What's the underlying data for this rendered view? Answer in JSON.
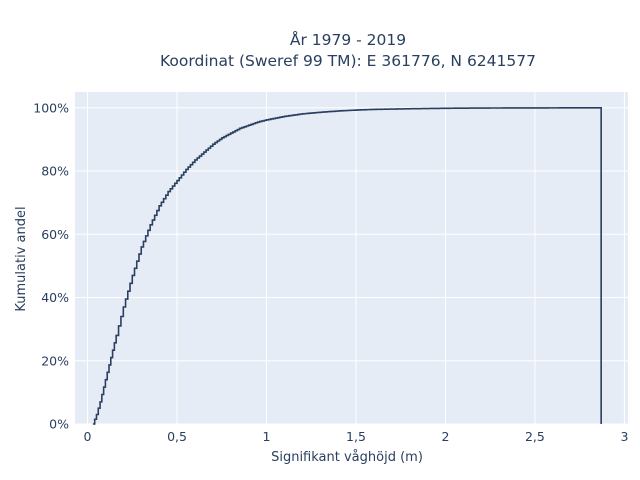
{
  "chart_data": {
    "type": "line",
    "line_shape": "step",
    "title": [
      "År 1979 - 2019",
      "Koordinat (Sweref 99 TM): E 361776, N 6241577"
    ],
    "xlabel": "Signifikant våghöjd (m)",
    "ylabel": "Kumulativ andel",
    "xlim": [
      -0.07,
      3.02
    ],
    "ylim": [
      0,
      1.05
    ],
    "x_ticks": [
      0,
      0.5,
      1,
      1.5,
      2,
      2.5,
      3
    ],
    "x_tick_labels": [
      "0",
      "0,5",
      "1",
      "1,5",
      "2",
      "2,5",
      "3"
    ],
    "y_ticks": [
      0,
      0.2,
      0.4,
      0.6,
      0.8,
      1.0
    ],
    "y_tick_labels": [
      "0%",
      "20%",
      "40%",
      "60%",
      "80%",
      "100%"
    ],
    "grid": true,
    "colors": {
      "plot_bg": "#e5ecf6",
      "grid": "#ffffff",
      "line": "#2a3f5f",
      "text": "#2a3f5f"
    },
    "series": [
      {
        "x": [
          0.03,
          0.05,
          0.07,
          0.1,
          0.13,
          0.16,
          0.2,
          0.25,
          0.3,
          0.35,
          0.4,
          0.45,
          0.5,
          0.55,
          0.6,
          0.65,
          0.7,
          0.75,
          0.8,
          0.85,
          0.9,
          0.95,
          1.0,
          1.1,
          1.2,
          1.3,
          1.4,
          1.5,
          1.6,
          1.8,
          2.0,
          2.2,
          2.6,
          2.87
        ],
        "y": [
          0.0,
          0.03,
          0.07,
          0.14,
          0.21,
          0.28,
          0.37,
          0.47,
          0.56,
          0.63,
          0.69,
          0.735,
          0.77,
          0.805,
          0.835,
          0.86,
          0.885,
          0.905,
          0.92,
          0.935,
          0.945,
          0.955,
          0.962,
          0.973,
          0.981,
          0.986,
          0.99,
          0.993,
          0.995,
          0.997,
          0.9985,
          0.9993,
          0.9998,
          1.0
        ]
      }
    ]
  }
}
